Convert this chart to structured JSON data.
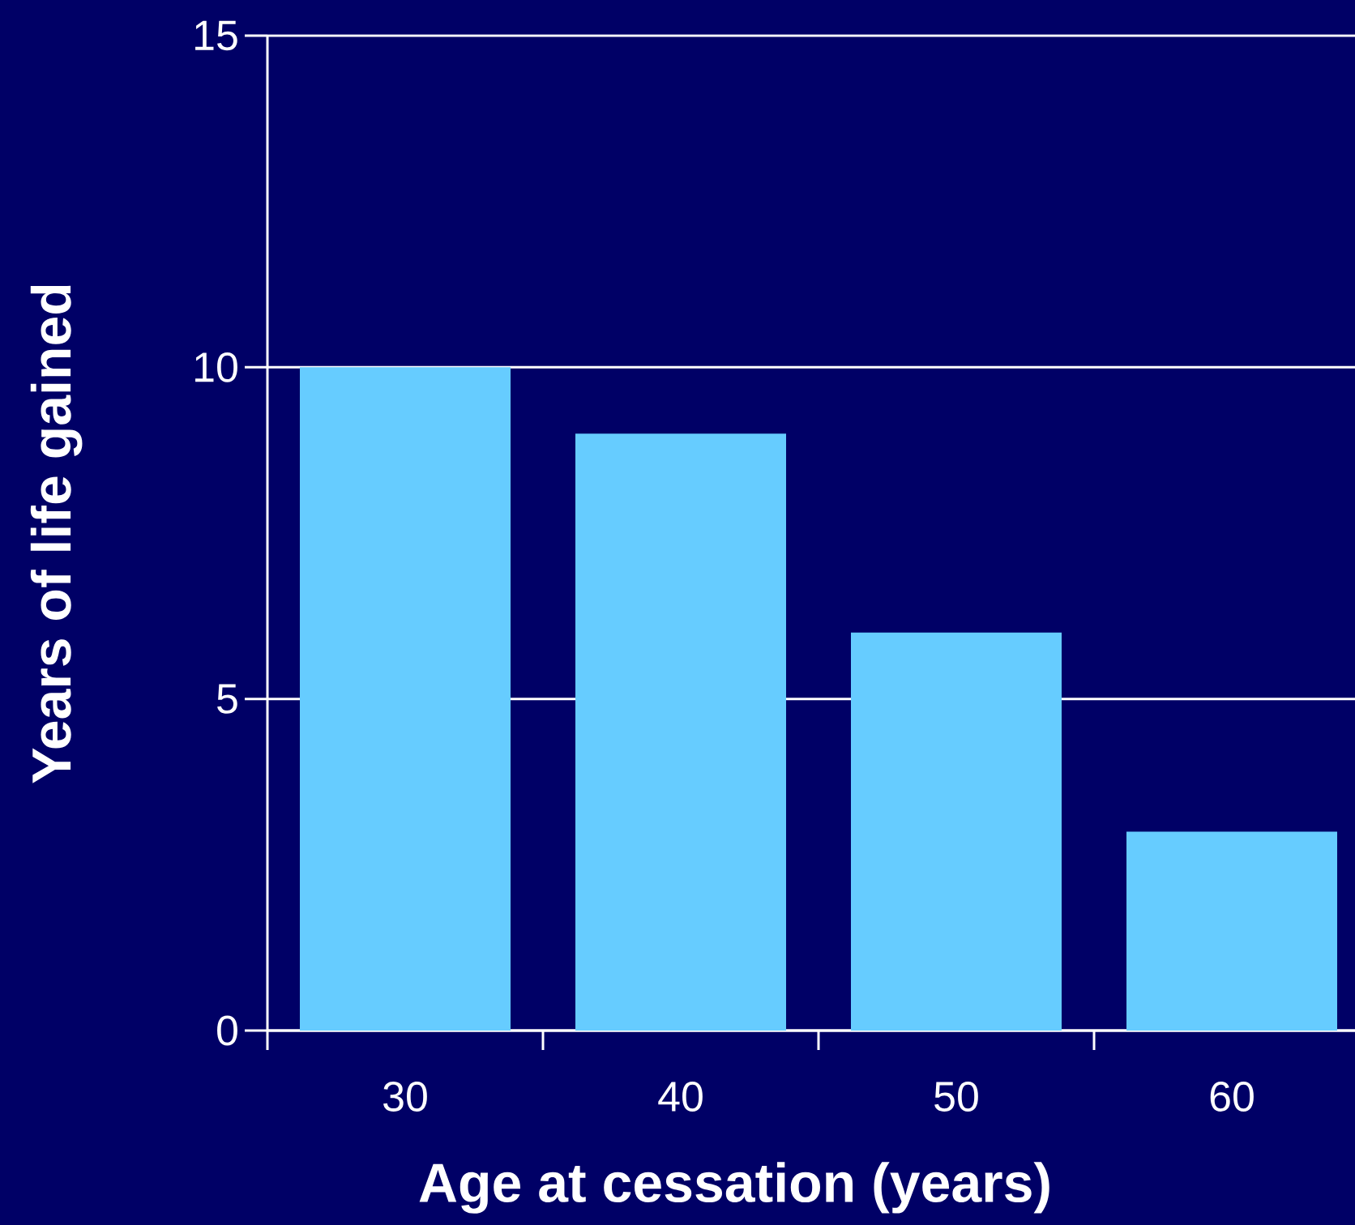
{
  "chart_data": {
    "type": "bar",
    "xlabel": "Age at cessation (years)",
    "ylabel": "Years of life gained",
    "categories": [
      "30",
      "40",
      "50",
      "60"
    ],
    "values": [
      10,
      9,
      6,
      3
    ],
    "color": "#66ccff",
    "ylim": [
      0,
      15
    ],
    "yticks": [
      0,
      5,
      10,
      15
    ],
    "grid": "y"
  }
}
